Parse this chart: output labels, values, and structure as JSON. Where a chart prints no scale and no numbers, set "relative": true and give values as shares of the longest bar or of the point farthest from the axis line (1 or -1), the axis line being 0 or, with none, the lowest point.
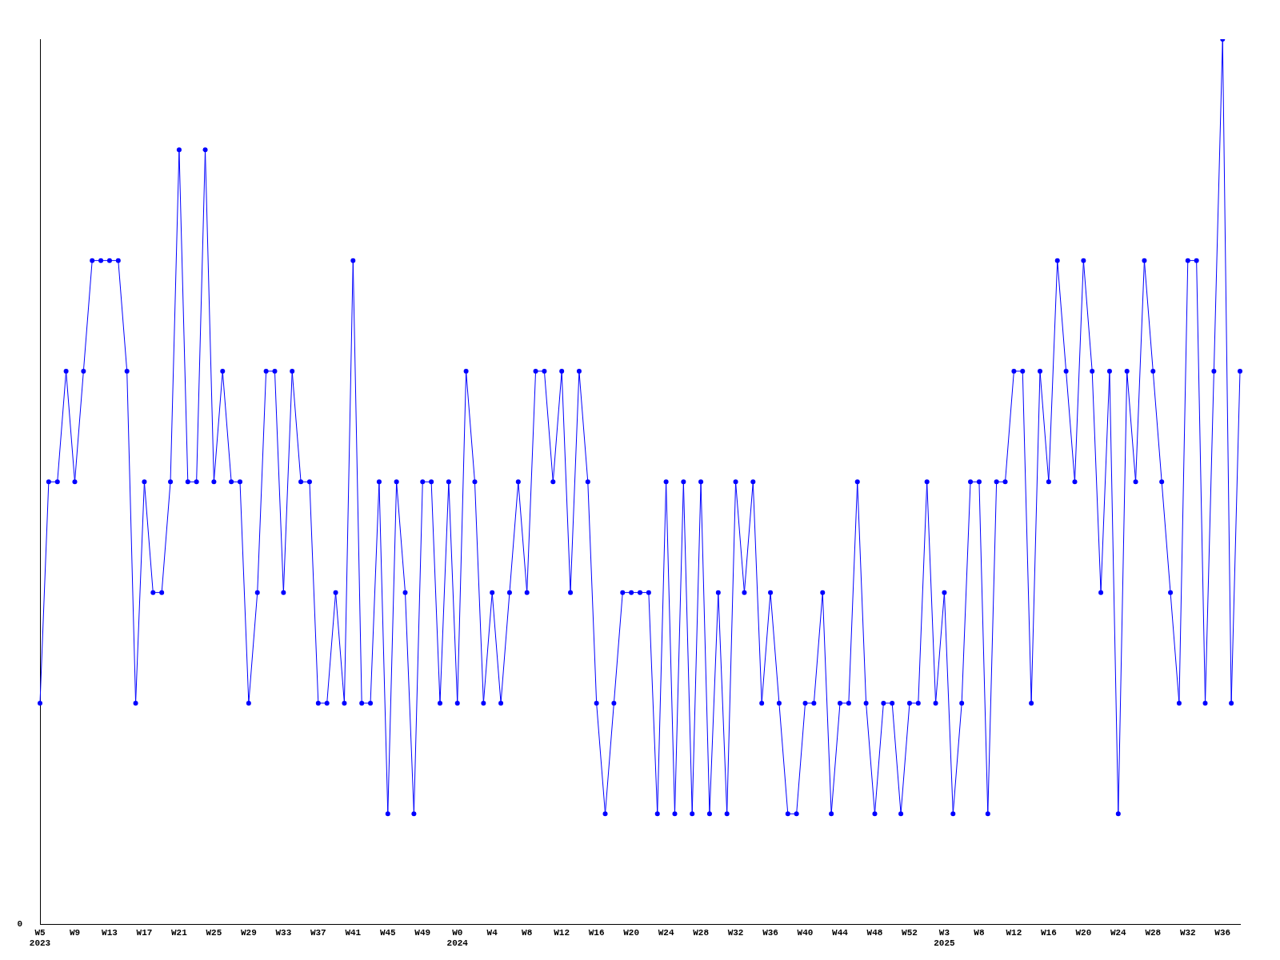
{
  "chart_data": {
    "type": "line",
    "relative": true,
    "color": "#0000ff",
    "marker": "circle",
    "grid": false,
    "legend": false,
    "annotations": [
      "0"
    ],
    "categories": [
      "W5\n2023",
      null,
      null,
      null,
      "W9",
      null,
      null,
      null,
      "W13",
      null,
      null,
      null,
      "W17",
      null,
      null,
      null,
      "W21",
      null,
      null,
      null,
      "W25",
      null,
      null,
      null,
      "W29",
      null,
      null,
      null,
      "W33",
      null,
      null,
      null,
      "W37",
      null,
      null,
      null,
      "W41",
      null,
      null,
      null,
      "W45",
      null,
      null,
      null,
      "W49",
      null,
      null,
      null,
      "W0\n2024",
      null,
      null,
      null,
      "W4",
      null,
      null,
      null,
      "W8",
      null,
      null,
      null,
      "W12",
      null,
      null,
      null,
      "W16",
      null,
      null,
      null,
      "W20",
      null,
      null,
      null,
      "W24",
      null,
      null,
      null,
      "W28",
      null,
      null,
      null,
      "W32",
      null,
      null,
      null,
      "W36",
      null,
      null,
      null,
      "W40",
      null,
      null,
      null,
      "W44",
      null,
      null,
      null,
      "W48",
      null,
      null,
      null,
      "W52",
      null,
      null,
      null,
      "W3\n2025",
      null,
      null,
      null,
      "W8",
      null,
      null,
      null,
      "W12",
      null,
      null,
      null,
      "W16",
      null,
      null,
      null,
      "W20",
      null,
      null,
      null,
      "W24",
      null,
      null,
      null,
      "W28",
      null,
      null,
      null,
      "W32",
      null,
      null,
      null,
      "W36",
      null,
      null
    ],
    "values": [
      0.25,
      0.5,
      0.5,
      0.625,
      0.5,
      0.625,
      0.75,
      0.75,
      0.75,
      0.75,
      0.625,
      0.25,
      0.5,
      0.375,
      0.375,
      0.5,
      0.875,
      0.5,
      0.5,
      0.875,
      0.5,
      0.625,
      0.5,
      0.5,
      0.25,
      0.375,
      0.625,
      0.625,
      0.375,
      0.625,
      0.5,
      0.5,
      0.25,
      0.25,
      0.375,
      0.25,
      0.75,
      0.25,
      0.25,
      0.5,
      0.125,
      0.5,
      0.375,
      0.125,
      0.5,
      0.5,
      0.25,
      0.5,
      0.25,
      0.625,
      0.5,
      0.25,
      0.375,
      0.25,
      0.375,
      0.5,
      0.375,
      0.625,
      0.625,
      0.5,
      0.625,
      0.375,
      0.625,
      0.5,
      0.25,
      0.125,
      0.25,
      0.375,
      0.375,
      0.375,
      0.375,
      0.125,
      0.5,
      0.125,
      0.5,
      0.125,
      0.5,
      0.125,
      0.375,
      0.125,
      0.5,
      0.375,
      0.5,
      0.25,
      0.375,
      0.25,
      0.125,
      0.125,
      0.25,
      0.25,
      0.375,
      0.125,
      0.25,
      0.25,
      0.5,
      0.25,
      0.125,
      0.25,
      0.25,
      0.125,
      0.25,
      0.25,
      0.5,
      0.25,
      0.375,
      0.125,
      0.25,
      0.5,
      0.5,
      0.125,
      0.5,
      0.5,
      0.625,
      0.625,
      0.25,
      0.625,
      0.5,
      0.75,
      0.625,
      0.5,
      0.75,
      0.625,
      0.375,
      0.625,
      0.125,
      0.625,
      0.5,
      0.75,
      0.625,
      0.5,
      0.375,
      0.25,
      0.75,
      0.75,
      0.25,
      0.625,
      1,
      0.25,
      0.625
    ]
  }
}
